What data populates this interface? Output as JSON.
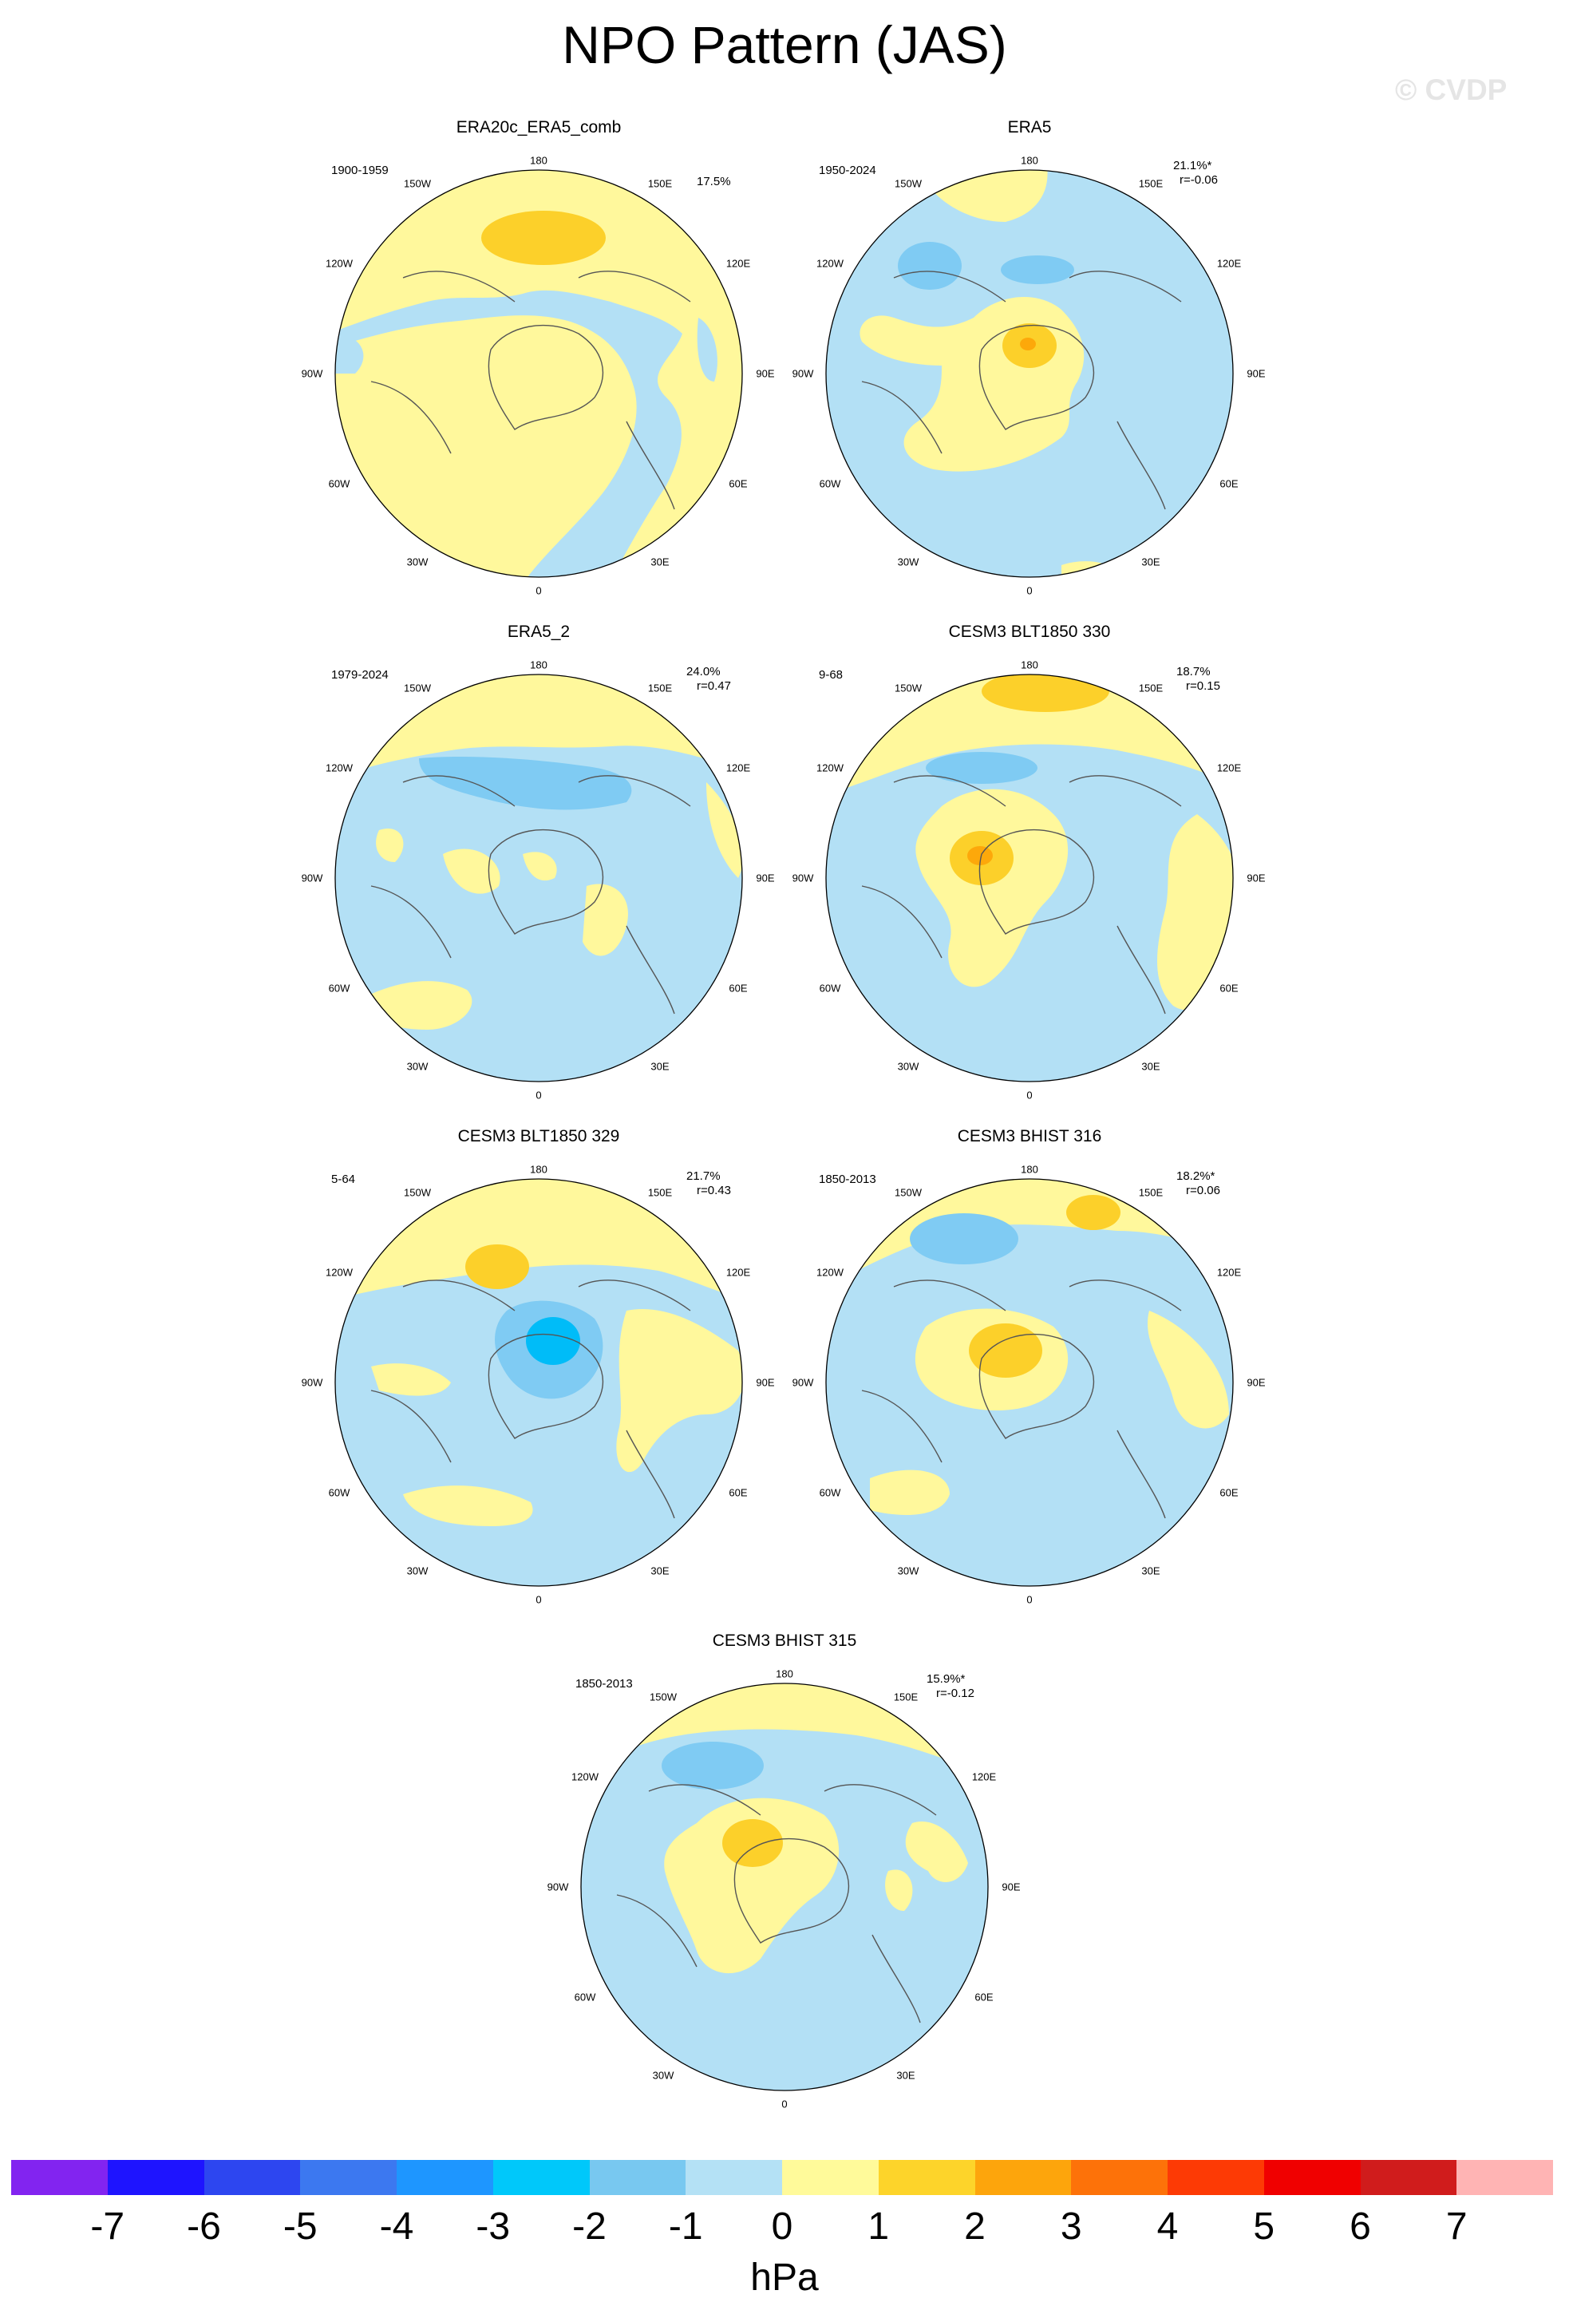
{
  "page_title": "NPO Pattern (JAS)",
  "credit": "© CVDP",
  "lon_labels": [
    "180",
    "150E",
    "120E",
    "90E",
    "60E",
    "30E",
    "0",
    "30W",
    "60W",
    "90W",
    "120W",
    "150W"
  ],
  "colors": {
    "neg1": "#b3e0f5",
    "neg2": "#7fcbf3",
    "neg3": "#00bcf8",
    "neg4": "#1e90ff",
    "pos1": "#fff89c",
    "pos2": "#fcd02a",
    "pos3": "#fda80a",
    "coast": "#555555",
    "rim": "#000000"
  },
  "panels": [
    {
      "title": "ERA20c_ERA5_comb",
      "years": "1900-1959",
      "pct": "17.5%",
      "r": ""
    },
    {
      "title": "ERA5",
      "years": "1950-2024",
      "pct": "21.1%*",
      "r": "r=-0.06"
    },
    {
      "title": "ERA5_2",
      "years": "1979-2024",
      "pct": "24.0%",
      "r": "r=0.47"
    },
    {
      "title": "CESM3 BLT1850 330",
      "years": "9-68",
      "pct": "18.7%",
      "r": "r=0.15"
    },
    {
      "title": "CESM3 BLT1850 329",
      "years": "5-64",
      "pct": "21.7%",
      "r": "r=0.43"
    },
    {
      "title": "CESM3 BHIST 316",
      "years": "1850-2013",
      "pct": "18.2%*",
      "r": "r=0.06"
    },
    {
      "title": "CESM3 BHIST 315",
      "years": "1850-2013",
      "pct": "15.9%*",
      "r": "r=-0.12"
    }
  ],
  "colorbar": {
    "colors": [
      "#8224f0",
      "#1e14ff",
      "#2d46f0",
      "#3c78f0",
      "#1e96ff",
      "#00c8fa",
      "#78c8f0",
      "#b4e1f5",
      "#fffa9a",
      "#fdd42a",
      "#fda50c",
      "#fd7209",
      "#fd3a05",
      "#f00000",
      "#d01c1c",
      "#ffb4b4"
    ],
    "labels": [
      "-7",
      "-6",
      "-5",
      "-4",
      "-3",
      "-2",
      "-1",
      "0",
      "1",
      "2",
      "3",
      "4",
      "5",
      "6",
      "7"
    ],
    "units": "hPa"
  }
}
